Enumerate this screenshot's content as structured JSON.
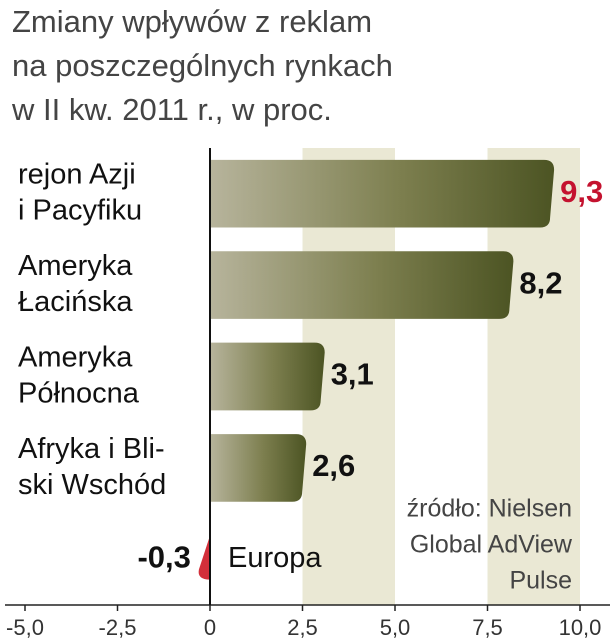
{
  "chart_data": {
    "type": "hbar",
    "title": [
      "Zmiany wpływów z reklam",
      "na poszczególnych rynkach",
      "w II kw. 2011 r., w proc."
    ],
    "categories": [
      "rejon Azji\ni Pacyfiku",
      "Ameryka\nŁacińska",
      "Ameryka\nPółnocna",
      "Afryka i Bli-\nski Wschód",
      "Europa"
    ],
    "values": [
      9.3,
      8.2,
      3.1,
      2.6,
      -0.3
    ],
    "value_labels": [
      "9,3",
      "8,2",
      "3,1",
      "2,6",
      "-0,3"
    ],
    "value_label_colors": [
      "#c4122f",
      "#111111",
      "#111111",
      "#111111",
      "#111111"
    ],
    "color": "#4c5423",
    "negative_color": "#d32f3a",
    "xlim": [
      -5,
      10
    ],
    "xticks": [
      {
        "value": -5,
        "label": "-5,0"
      },
      {
        "value": -2.5,
        "label": "-2,5"
      },
      0,
      {
        "value": 2.5,
        "label": "2,5"
      },
      {
        "value": 5,
        "label": "5,0"
      },
      {
        "value": 7.5,
        "label": "7,5"
      },
      {
        "value": 10,
        "label": "10,0"
      }
    ],
    "source": [
      "źródło: Nielsen",
      "Global AdView",
      "Pulse"
    ]
  }
}
